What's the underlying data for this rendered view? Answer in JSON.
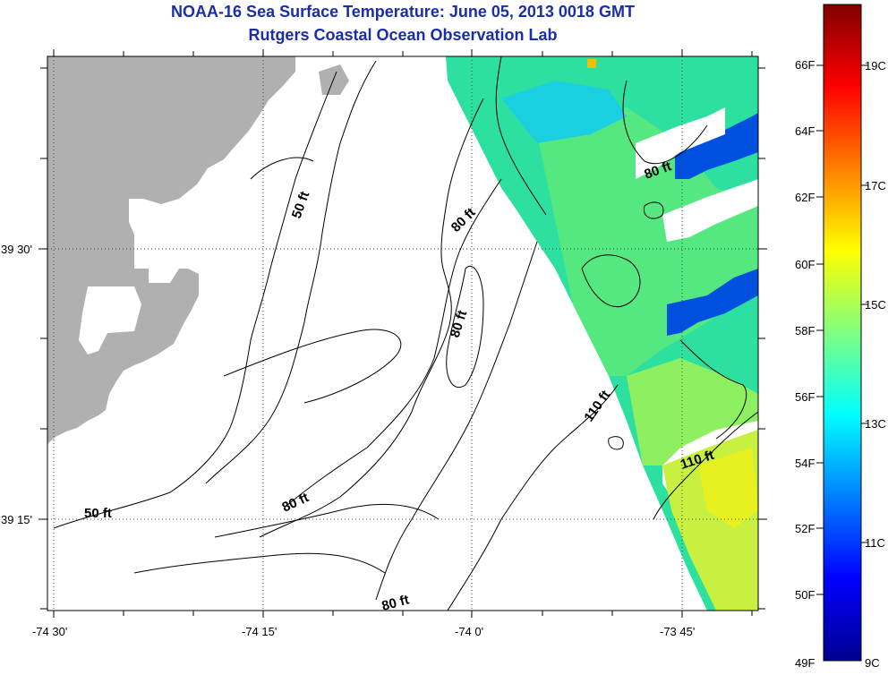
{
  "header": {
    "title": "NOAA-16 Sea Surface Temperature:  June 05, 2013 0018 GMT",
    "subtitle": "Rutgers Coastal Ocean Observation Lab"
  },
  "map": {
    "x_ticks": [
      "-74 30'",
      "-74 15'",
      "-74 0'",
      "-73 45'"
    ],
    "y_ticks": [
      "39 30'",
      "39 15'"
    ],
    "contour_labels": [
      "50 ft",
      "50 ft",
      "80 ft",
      "80 ft",
      "80 ft",
      "80 ft",
      "80 ft",
      "110 ft",
      "110 ft"
    ],
    "land_color": "#b0b0b0",
    "no_data_color": "#ffffff"
  },
  "colorbar": {
    "fahrenheit_labels": [
      "66F",
      "64F",
      "62F",
      "60F",
      "58F",
      "56F",
      "54F",
      "52F",
      "50F",
      "49F"
    ],
    "celsius_labels": [
      "19C",
      "17C",
      "15C",
      "13C",
      "11C",
      "9C"
    ],
    "colors": [
      "#00008f",
      "#0000ff",
      "#0080ff",
      "#00ffff",
      "#80ff80",
      "#ffff00",
      "#ff8000",
      "#ff0000",
      "#800000"
    ]
  }
}
